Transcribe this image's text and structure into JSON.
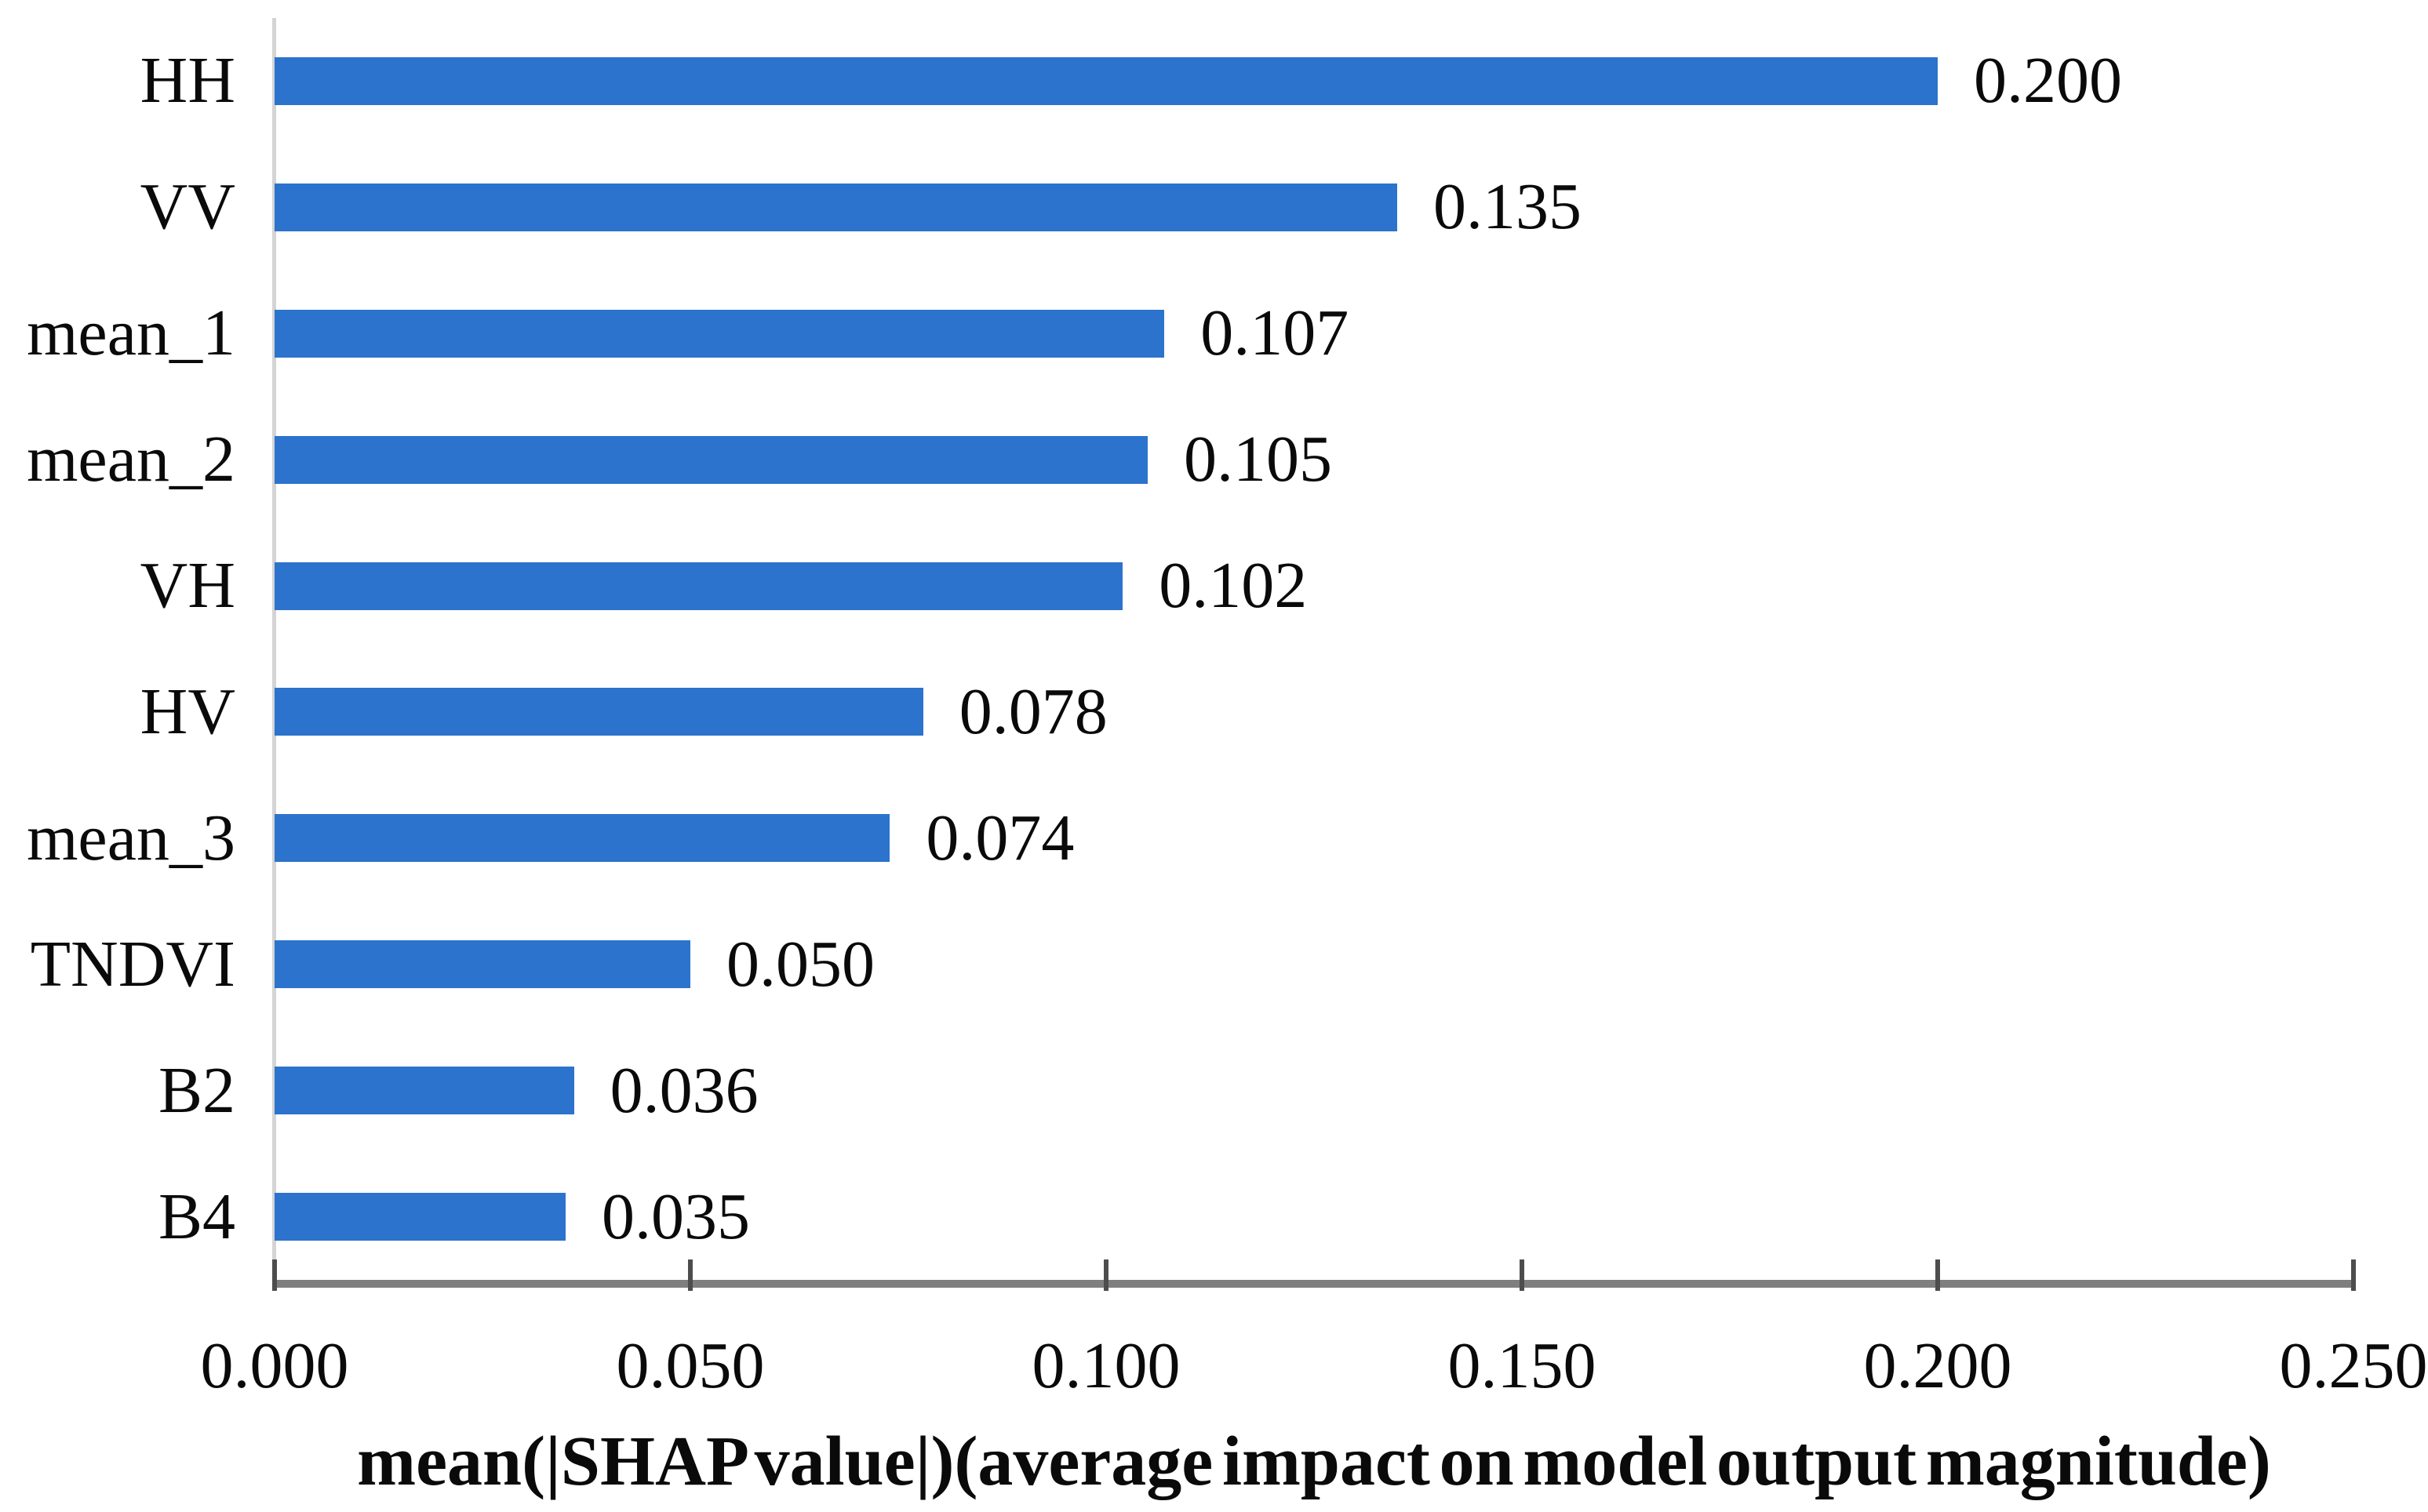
{
  "chart_data": {
    "type": "bar",
    "orientation": "horizontal",
    "title": "",
    "categories": [
      "HH",
      "VV",
      "mean_1",
      "mean_2",
      "VH",
      "HV",
      "mean_3",
      "TNDVI",
      "B2",
      "B4"
    ],
    "values": [
      0.2,
      0.135,
      0.107,
      0.105,
      0.102,
      0.078,
      0.074,
      0.05,
      0.036,
      0.035
    ],
    "value_labels": [
      "0.200",
      "0.135",
      "0.107",
      "0.105",
      "0.102",
      "0.078",
      "0.074",
      "0.050",
      "0.036",
      "0.035"
    ],
    "xlabel": "mean(|SHAP value|)(average impact on model output magnitude)",
    "ylabel": "",
    "xlim": [
      0.0,
      0.25
    ],
    "x_ticks": [
      0.0,
      0.05,
      0.1,
      0.15,
      0.2,
      0.25
    ],
    "x_tick_labels": [
      "0.000",
      "0.050",
      "0.100",
      "0.150",
      "0.200",
      "0.250"
    ],
    "grid": false,
    "legend": false,
    "data_labels_shown": true,
    "bar_color": "#2b73cc",
    "x_axis_line_color": "#7f7f7f",
    "y_axis_line_color": "#d4d4d4",
    "tick_color": "#4d4d4d",
    "text_color": "#0a0a0a"
  }
}
